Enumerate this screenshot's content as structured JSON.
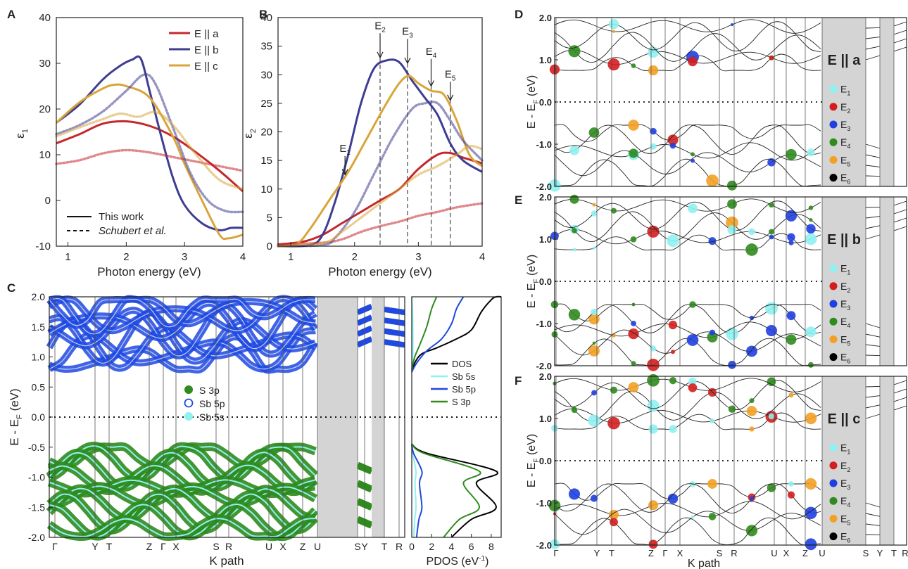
{
  "panel_letters": {
    "A": "A",
    "B": "B",
    "C": "C",
    "D": "D",
    "E": "E",
    "F": "F"
  },
  "colors": {
    "Ea": "#c3282c",
    "Eb": "#3e3d92",
    "Ec": "#d9a53a",
    "S3p": "#2f8b1d",
    "Sb5p": "#1f49e0",
    "Sb5s": "#8ff1f1",
    "E1": "#8ff1f1",
    "E2": "#d41e1e",
    "E3": "#1f3fe0",
    "E4": "#2f8b1d",
    "E5": "#f2a125",
    "E6": "#000000",
    "gray_band": "#d4d4d4"
  },
  "chart_data": [
    {
      "type": "line",
      "panel": "A",
      "xlabel": "Photon energy (eV)",
      "ylabel": "ε",
      "ylabel_sub": "1",
      "xlim": [
        0.8,
        4
      ],
      "ylim": [
        -10,
        40
      ],
      "xticks": [
        "1",
        "2",
        "3",
        "4"
      ],
      "yticks": [
        "-10",
        "0",
        "10",
        "20",
        "30",
        "40"
      ],
      "legend_series": [
        "E || a",
        "E || b",
        "E || c"
      ],
      "legend_style": [
        "This work",
        "Schubert  et al."
      ],
      "series": [
        {
          "name": "E || a",
          "style": "solid",
          "x": [
            0.8,
            1.2,
            1.6,
            2.0,
            2.4,
            2.8,
            3.2,
            3.6,
            4.0
          ],
          "y": [
            12.5,
            14.5,
            16.8,
            17.3,
            16.3,
            14.0,
            10.5,
            6.5,
            2.0
          ]
        },
        {
          "name": "E || b",
          "style": "solid",
          "x": [
            0.8,
            1.2,
            1.6,
            1.9,
            2.1,
            2.25,
            2.4,
            2.6,
            2.8,
            3.0,
            3.3,
            3.6,
            3.8,
            4.0
          ],
          "y": [
            17.0,
            21.0,
            26.5,
            29.5,
            30.8,
            31.0,
            24.0,
            14.0,
            5.0,
            -1.0,
            -5.0,
            -6.5,
            -6.0,
            -6.0
          ]
        },
        {
          "name": "E || c",
          "style": "solid",
          "x": [
            0.8,
            1.2,
            1.6,
            1.8,
            2.0,
            2.4,
            2.8,
            3.0,
            3.3,
            3.6,
            3.75,
            4.0
          ],
          "y": [
            17.0,
            21.5,
            24.5,
            25.3,
            25.0,
            22.5,
            14.0,
            8.0,
            0.0,
            -7.5,
            -8.3,
            -7.5
          ]
        },
        {
          "name": "E || a",
          "style": "dotted",
          "x": [
            0.8,
            1.2,
            1.6,
            2.0,
            2.4,
            2.8,
            3.2,
            3.6,
            4.0
          ],
          "y": [
            8.0,
            8.8,
            10.3,
            11.0,
            10.5,
            9.5,
            8.5,
            7.5,
            6.5
          ]
        },
        {
          "name": "E || b",
          "style": "dotted",
          "x": [
            0.8,
            1.2,
            1.6,
            2.0,
            2.3,
            2.5,
            2.8,
            3.1,
            3.4,
            3.7,
            4.0
          ],
          "y": [
            14.5,
            16.5,
            19.5,
            24.0,
            27.5,
            25.5,
            16.0,
            6.0,
            0.0,
            -2.3,
            -2.5
          ]
        },
        {
          "name": "E || c",
          "style": "dotted",
          "x": [
            0.8,
            1.2,
            1.6,
            1.9,
            2.2,
            2.5,
            2.8,
            3.2,
            3.6,
            4.0
          ],
          "y": [
            14.0,
            16.0,
            17.8,
            19.0,
            18.3,
            19.3,
            16.5,
            10.0,
            4.5,
            2.5
          ]
        }
      ]
    },
    {
      "type": "line",
      "panel": "B",
      "xlabel": "Photon energy (eV)",
      "ylabel": "ε",
      "ylabel_sub": "2",
      "xlim": [
        0.8,
        4
      ],
      "ylim": [
        0,
        40
      ],
      "xticks": [
        "1",
        "2",
        "3",
        "4"
      ],
      "yticks": [
        "0",
        "5",
        "10",
        "15",
        "20",
        "25",
        "30",
        "35",
        "40"
      ],
      "markers": [
        {
          "label": "E",
          "sub": "1",
          "x": 1.85,
          "y_label": 16.5,
          "y_arrow_end": 12.5
        },
        {
          "label": "E",
          "sub": "2",
          "x": 2.4,
          "y_label": 38.0,
          "y_arrow_end": 33.0
        },
        {
          "label": "E",
          "sub": "3",
          "x": 2.83,
          "y_label": 37.0,
          "y_arrow_end": 32.0
        },
        {
          "label": "E",
          "sub": "4",
          "x": 3.2,
          "y_label": 33.5,
          "y_arrow_end": 28.0
        },
        {
          "label": "E",
          "sub": "5",
          "x": 3.5,
          "y_label": 29.5,
          "y_arrow_end": 25.5
        }
      ],
      "series": [
        {
          "name": "E || a",
          "style": "solid",
          "x": [
            0.8,
            1.2,
            1.5,
            1.8,
            2.1,
            2.4,
            2.7,
            3.0,
            3.3,
            3.5,
            3.7,
            4.0
          ],
          "y": [
            0.3,
            0.8,
            2.0,
            4.0,
            6.0,
            8.0,
            10.0,
            13.5,
            16.0,
            16.3,
            15.5,
            14.5
          ]
        },
        {
          "name": "E || b",
          "style": "solid",
          "x": [
            0.8,
            1.3,
            1.5,
            1.7,
            1.9,
            2.1,
            2.3,
            2.5,
            2.7,
            2.9,
            3.1,
            3.3,
            3.5,
            3.7,
            4.0
          ],
          "y": [
            0.0,
            0.2,
            2.0,
            8.0,
            16.0,
            25.0,
            31.0,
            32.5,
            32.2,
            29.0,
            26.0,
            23.0,
            18.0,
            15.0,
            13.0
          ]
        },
        {
          "name": "E || c",
          "style": "solid",
          "x": [
            0.8,
            1.1,
            1.3,
            1.6,
            1.9,
            2.2,
            2.5,
            2.7,
            2.85,
            3.0,
            3.2,
            3.4,
            3.6,
            3.8,
            4.0
          ],
          "y": [
            0.0,
            0.5,
            3.0,
            8.0,
            13.0,
            19.0,
            25.0,
            28.5,
            29.8,
            28.5,
            27.2,
            26.5,
            22.0,
            16.0,
            14.0
          ]
        },
        {
          "name": "E || a",
          "style": "dotted",
          "x": [
            0.8,
            1.5,
            1.8,
            2.1,
            2.4,
            2.7,
            3.0,
            3.3,
            3.6,
            4.0
          ],
          "y": [
            0.3,
            0.6,
            1.2,
            2.5,
            3.5,
            4.3,
            5.3,
            6.0,
            6.8,
            7.5
          ]
        },
        {
          "name": "E || b",
          "style": "dotted",
          "x": [
            0.8,
            1.5,
            1.7,
            2.0,
            2.3,
            2.6,
            2.9,
            3.1,
            3.3,
            3.5,
            3.7,
            4.0
          ],
          "y": [
            0.0,
            0.2,
            1.5,
            6.0,
            12.5,
            19.0,
            24.0,
            25.0,
            25.0,
            22.0,
            18.5,
            15.0
          ]
        },
        {
          "name": "E || c",
          "style": "dotted",
          "x": [
            0.8,
            1.5,
            1.8,
            2.1,
            2.4,
            2.7,
            3.0,
            3.3,
            3.6,
            3.8,
            4.0
          ],
          "y": [
            0.0,
            0.5,
            2.5,
            5.0,
            7.5,
            10.0,
            12.5,
            14.0,
            16.0,
            17.5,
            17.0
          ]
        }
      ]
    },
    {
      "type": "line",
      "panel": "C",
      "xlabel": "K path",
      "ylabel": "E - E",
      "ylabel_sub": "F",
      "ylabel_unit": " (eV)",
      "ylim": [
        -2,
        2
      ],
      "yticks": [
        "-2.0",
        "-1.5",
        "-1.0",
        "-0.5",
        "0.0",
        "0.5",
        "1.0",
        "1.5",
        "2.0"
      ],
      "kpoints": [
        "Γ",
        "Y",
        "T",
        "Z",
        "Γ",
        "X",
        "S",
        "R",
        "U",
        "X",
        "Z",
        "U",
        "S",
        "Y",
        "T",
        "R"
      ],
      "legend": [
        "S 3p",
        "Sb 5p",
        "Sb 5s"
      ]
    },
    {
      "type": "line",
      "panel": "C-PDOS",
      "xlabel": "PDOS (eV",
      "xlabel_sup": "-1",
      "xlabel_end": ")",
      "xlim": [
        0,
        9
      ],
      "ylim": [
        -2,
        2
      ],
      "xticks": [
        "0",
        "2",
        "4",
        "6",
        "8"
      ],
      "legend": [
        "DOS",
        "Sb 5s",
        "Sb 5p",
        "S 3p"
      ],
      "series": [
        {
          "name": "DOS",
          "x": [
            0.0,
            0.3,
            1.0,
            2.5,
            4.5,
            6.0,
            7.0,
            8.0,
            8.5,
            9.0
          ],
          "y": [
            0.75,
            0.9,
            1.05,
            1.15,
            1.3,
            1.45,
            1.75,
            1.95,
            2.0,
            2.0
          ]
        },
        {
          "name": "Sb 5s",
          "x": [
            0.0,
            0.1,
            0.1,
            0.0
          ],
          "y": [
            0.75,
            1.0,
            1.6,
            2.0
          ]
        },
        {
          "name": "Sb 5p",
          "x": [
            0.0,
            0.5,
            1.5,
            3.0,
            4.0,
            4.5,
            5.2
          ],
          "y": [
            0.75,
            0.9,
            1.1,
            1.3,
            1.55,
            1.8,
            2.0
          ]
        },
        {
          "name": "S 3p",
          "x": [
            0.0,
            0.3,
            0.8,
            1.5,
            2.0,
            2.5
          ],
          "y": [
            0.8,
            1.0,
            1.2,
            1.5,
            1.8,
            2.0
          ]
        }
      ]
    },
    {
      "type": "scatter",
      "panel": "D",
      "title": "E || a",
      "ylabel": "E - E",
      "ylabel_sub": "F",
      "ylabel_unit": " (eV)",
      "ylim": [
        -2,
        2
      ],
      "yticks": [
        "-2.0",
        "-1.0",
        "0.0",
        "1.0",
        "2.0"
      ],
      "legend": [
        {
          "label": "E",
          "sub": "1"
        },
        {
          "label": "E",
          "sub": "2"
        },
        {
          "label": "E",
          "sub": "3"
        },
        {
          "label": "E",
          "sub": "4"
        },
        {
          "label": "E",
          "sub": "5"
        },
        {
          "label": "E",
          "sub": "6"
        }
      ]
    },
    {
      "type": "scatter",
      "panel": "E",
      "title": "E || b",
      "ylabel": "E - E",
      "ylabel_sub": "F",
      "ylabel_unit": " (eV)",
      "ylim": [
        -2,
        2
      ],
      "yticks": [
        "-2.0",
        "-1.0",
        "0.0",
        "1.0",
        "2.0"
      ],
      "legend": [
        {
          "label": "E",
          "sub": "1"
        },
        {
          "label": "E",
          "sub": "2"
        },
        {
          "label": "E",
          "sub": "3"
        },
        {
          "label": "E",
          "sub": "4"
        },
        {
          "label": "E",
          "sub": "5"
        },
        {
          "label": "E",
          "sub": "6"
        }
      ]
    },
    {
      "type": "scatter",
      "panel": "F",
      "title": "E || c",
      "xlabel": "K path",
      "ylabel": "E - E",
      "ylabel_sub": "F",
      "ylabel_unit": " (eV)",
      "ylim": [
        -2,
        2
      ],
      "yticks": [
        "-2.0",
        "-1.0",
        "0.0",
        "1.0",
        "2.0"
      ],
      "kpoints": [
        "Γ",
        "Y",
        "T",
        "Z",
        "Γ",
        "X",
        "S",
        "R",
        "U",
        "X",
        "Z",
        "U",
        "S",
        "Y",
        "T",
        "R"
      ],
      "legend": [
        {
          "label": "E",
          "sub": "1"
        },
        {
          "label": "E",
          "sub": "2"
        },
        {
          "label": "E",
          "sub": "3"
        },
        {
          "label": "E",
          "sub": "4"
        },
        {
          "label": "E",
          "sub": "5"
        },
        {
          "label": "E",
          "sub": "6"
        }
      ]
    }
  ]
}
